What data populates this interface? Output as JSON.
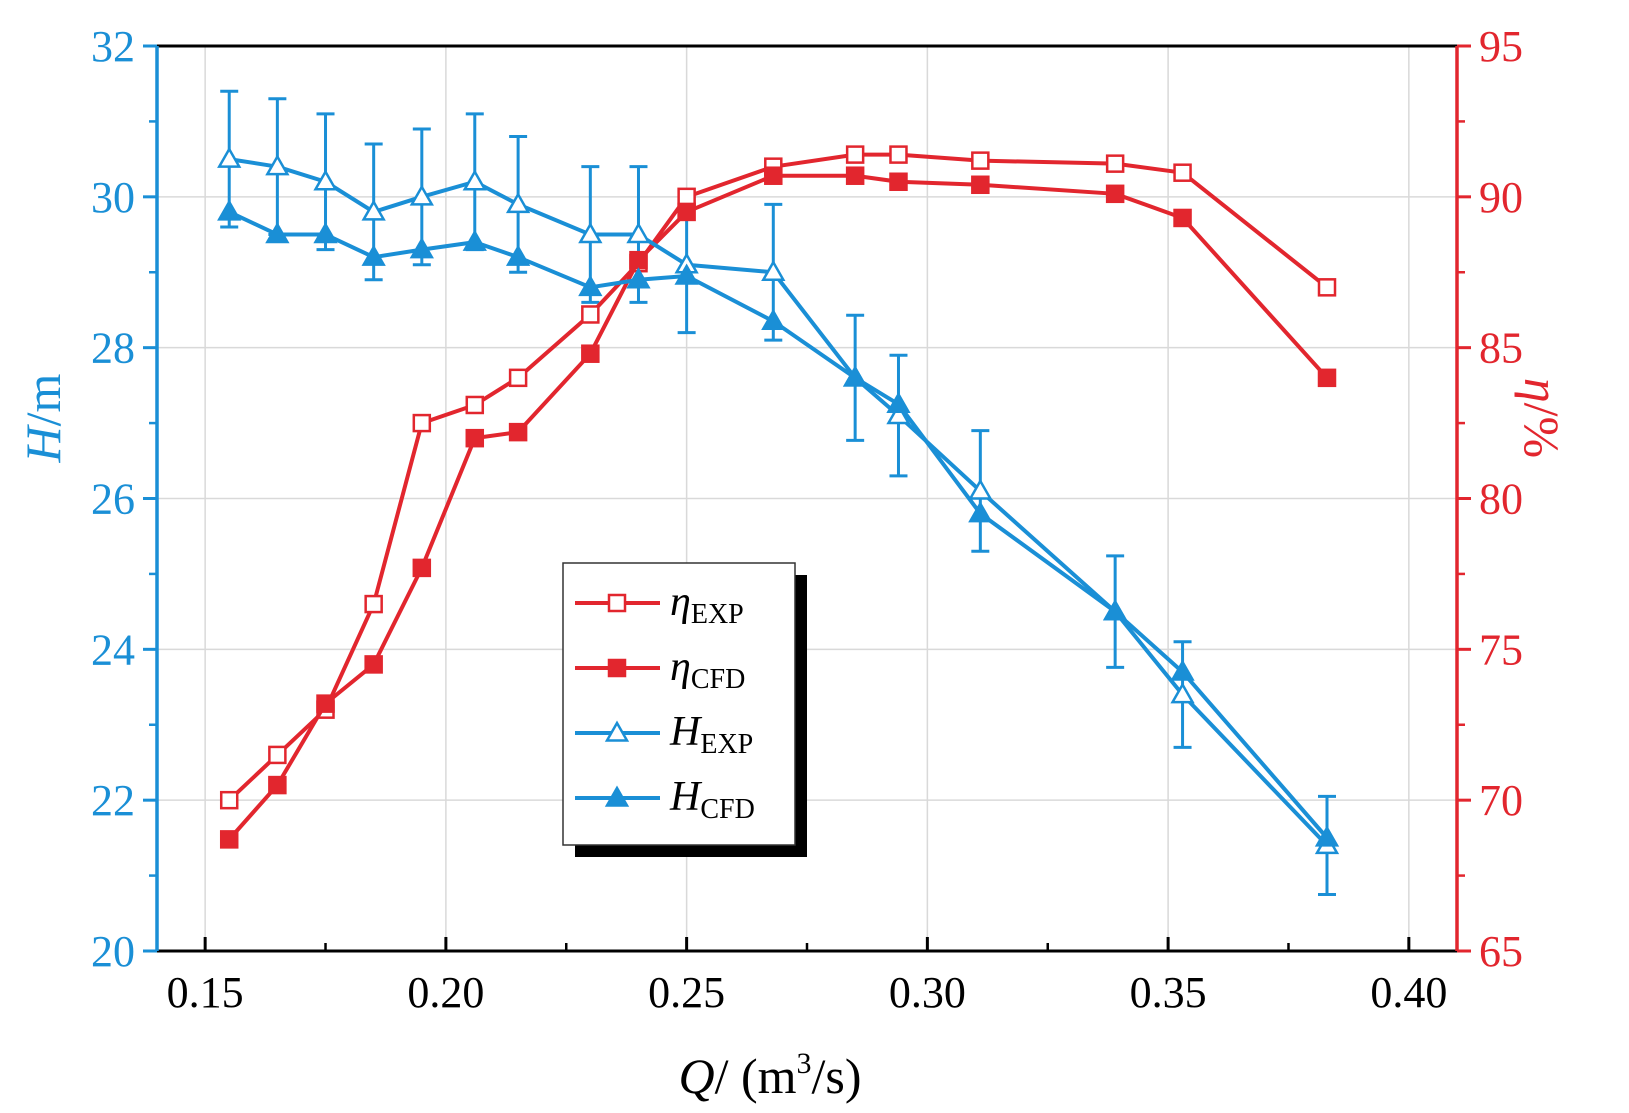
{
  "colors": {
    "head": "#1a8fd6",
    "efficiency": "#e2262e",
    "frame": "#000000",
    "grid": "#d9d9d9"
  },
  "chart_data": {
    "type": "line",
    "x_axis": {
      "label_var": "Q",
      "label_rest": "/ (m",
      "label_sup": "3",
      "label_end": "/s)",
      "range": [
        0.14,
        0.41
      ],
      "ticks": [
        "0.15",
        "0.20",
        "0.25",
        "0.30",
        "0.35",
        "0.40"
      ]
    },
    "y_left": {
      "label_var": "H",
      "label_rest": "/m",
      "range": [
        20,
        32
      ],
      "ticks": [
        "20",
        "22",
        "24",
        "26",
        "28",
        "30",
        "32"
      ]
    },
    "y_right": {
      "label_var": "η",
      "label_rest": "/%",
      "range": [
        65,
        95
      ],
      "ticks": [
        "65",
        "70",
        "75",
        "80",
        "85",
        "90",
        "95"
      ]
    },
    "series": [
      {
        "name": "η_EXP",
        "legend_main": "η",
        "legend_sub": "EXP",
        "axis": "right",
        "marker": "square-open",
        "x": [
          0.155,
          0.165,
          0.175,
          0.185,
          0.195,
          0.206,
          0.215,
          0.23,
          0.24,
          0.25,
          0.268,
          0.285,
          0.294,
          0.311,
          0.339,
          0.353,
          0.383
        ],
        "y": [
          70.0,
          71.5,
          73.0,
          76.5,
          82.5,
          83.1,
          84.0,
          86.1,
          87.8,
          90.0,
          91.0,
          91.4,
          91.4,
          91.2,
          91.1,
          90.8,
          87.0
        ]
      },
      {
        "name": "η_CFD",
        "legend_main": "η",
        "legend_sub": "CFD",
        "axis": "right",
        "marker": "square-filled",
        "x": [
          0.155,
          0.165,
          0.175,
          0.185,
          0.195,
          0.206,
          0.215,
          0.23,
          0.24,
          0.25,
          0.268,
          0.285,
          0.294,
          0.311,
          0.339,
          0.353,
          0.383
        ],
        "y": [
          68.7,
          70.5,
          73.2,
          74.5,
          77.7,
          82.0,
          82.2,
          84.8,
          87.9,
          89.5,
          90.7,
          90.7,
          90.5,
          90.4,
          90.1,
          89.3,
          84.0
        ]
      },
      {
        "name": "H_EXP",
        "legend_main": "H",
        "legend_sub": "EXP",
        "axis": "left",
        "marker": "triangle-open",
        "x": [
          0.155,
          0.165,
          0.175,
          0.185,
          0.195,
          0.206,
          0.215,
          0.23,
          0.24,
          0.25,
          0.268,
          0.285,
          0.294,
          0.311,
          0.339,
          0.353,
          0.383
        ],
        "y": [
          30.5,
          30.4,
          30.2,
          29.8,
          30.0,
          30.2,
          29.9,
          29.5,
          29.5,
          29.1,
          29.0,
          27.6,
          27.1,
          26.1,
          24.5,
          23.4,
          21.4
        ],
        "error": [
          0.9,
          0.9,
          0.9,
          0.9,
          0.9,
          0.9,
          0.9,
          0.9,
          0.9,
          0.9,
          0.9,
          0.83,
          0.8,
          0.8,
          0.74,
          0.7,
          0.65
        ]
      },
      {
        "name": "H_CFD",
        "legend_main": "H",
        "legend_sub": "CFD",
        "axis": "left",
        "marker": "triangle-filled",
        "x": [
          0.155,
          0.165,
          0.175,
          0.185,
          0.195,
          0.206,
          0.215,
          0.23,
          0.24,
          0.25,
          0.268,
          0.285,
          0.294,
          0.311,
          0.339,
          0.353,
          0.383
        ],
        "y": [
          29.8,
          29.5,
          29.5,
          29.2,
          29.3,
          29.4,
          29.2,
          28.8,
          28.9,
          28.95,
          28.35,
          27.6,
          27.25,
          25.8,
          24.5,
          23.7,
          21.5
        ]
      }
    ],
    "grid": true,
    "legend_position": "lower-center"
  }
}
